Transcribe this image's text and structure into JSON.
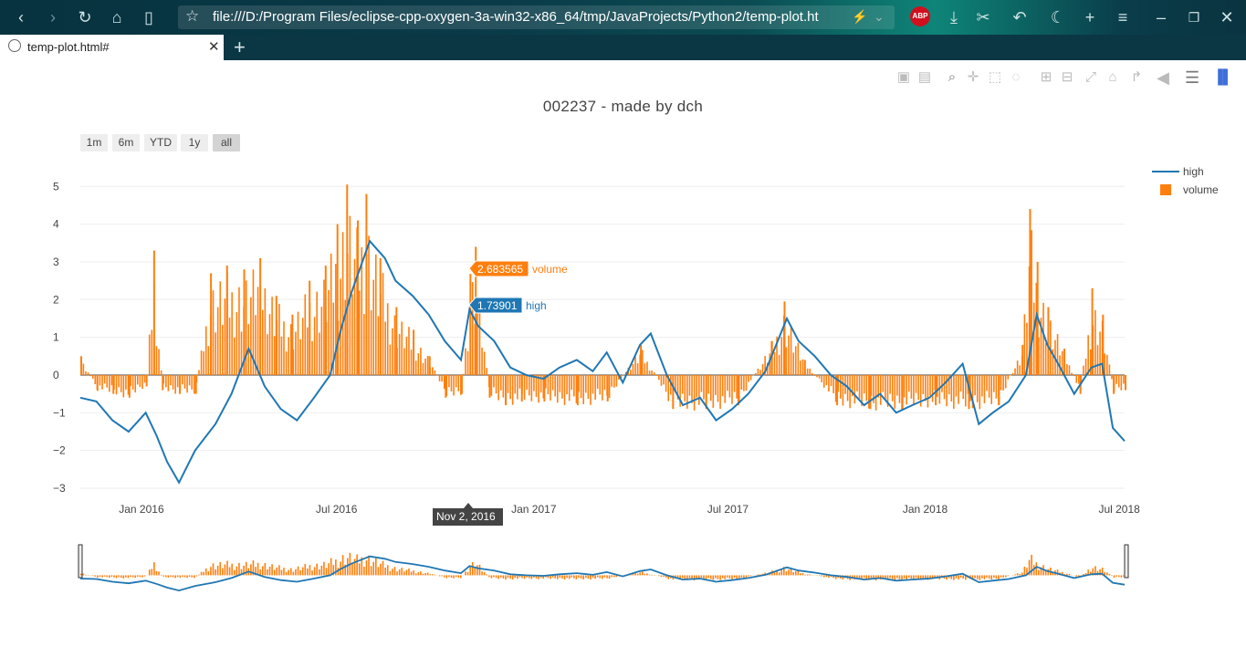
{
  "browser": {
    "url": "file:///D:/Program Files/eclipse-cpp-oxygen-3a-win32-x86_64/tmp/JavaProjects/Python2/temp-plot.ht",
    "tab_title": "temp-plot.html#",
    "adblock_label": "ABP",
    "nav_icons": [
      "back-icon",
      "forward-icon",
      "reload-icon",
      "home-icon",
      "reader-icon"
    ],
    "toolbar_icons": [
      "download-icon",
      "scissors-icon",
      "undo-icon",
      "moon-icon",
      "plus-icon",
      "menu-icon",
      "minimize-icon",
      "restore-icon",
      "close-icon"
    ]
  },
  "modebar": [
    "camera-icon",
    "save-icon",
    "zoom-icon",
    "pan-icon",
    "box-select-icon",
    "lasso-icon",
    "zoom-in-icon",
    "zoom-out-icon",
    "autoscale-icon",
    "reset-axes-icon",
    "spike-lines-icon",
    "hover-closest-icon",
    "hover-compare-icon",
    "plotly-logo-icon"
  ],
  "plot": {
    "title": "002237 - made by dch",
    "range_buttons": [
      {
        "label": "1m",
        "active": false
      },
      {
        "label": "6m",
        "active": false
      },
      {
        "label": "YTD",
        "active": false
      },
      {
        "label": "1y",
        "active": false
      },
      {
        "label": "all",
        "active": true
      }
    ],
    "legend": [
      {
        "name": "high",
        "kind": "line",
        "color": "#1f77b4"
      },
      {
        "name": "volume",
        "kind": "bar",
        "color": "#ff7f0e"
      }
    ],
    "hover": {
      "volume_value": "2.683565",
      "volume_label": "volume",
      "high_value": "1.73901",
      "high_label": "high",
      "date_label": "Nov 2, 2016"
    }
  },
  "chart_data": {
    "type": "line",
    "title": "002237 - made by dch",
    "x_tick_labels": [
      "Jan 2016",
      "Jul 2016",
      "Jan 2017",
      "Jul 2017",
      "Jan 2018",
      "Jul 2018"
    ],
    "y_tick_labels": [
      "5",
      "4",
      "3",
      "2",
      "1",
      "0",
      "−1",
      "−2",
      "−3"
    ],
    "ylim": [
      -3.0,
      5.2
    ],
    "xlim": [
      "2015-11-05",
      "2018-07-06"
    ],
    "legend_position": "top-right",
    "grid": true,
    "series": [
      {
        "name": "high",
        "type": "line",
        "color": "#1f77b4",
        "points": [
          [
            "2015-11-05",
            -0.6
          ],
          [
            "2015-11-20",
            -0.7
          ],
          [
            "2015-12-05",
            -1.2
          ],
          [
            "2015-12-20",
            -1.5
          ],
          [
            "2016-01-05",
            -1.0
          ],
          [
            "2016-01-15",
            -1.6
          ],
          [
            "2016-01-25",
            -2.3
          ],
          [
            "2016-02-05",
            -2.85
          ],
          [
            "2016-02-20",
            -2.0
          ],
          [
            "2016-03-10",
            -1.3
          ],
          [
            "2016-03-25",
            -0.5
          ],
          [
            "2016-04-10",
            0.7
          ],
          [
            "2016-04-25",
            -0.3
          ],
          [
            "2016-05-10",
            -0.9
          ],
          [
            "2016-05-25",
            -1.2
          ],
          [
            "2016-06-10",
            -0.6
          ],
          [
            "2016-06-25",
            0.0
          ],
          [
            "2016-07-05",
            1.2
          ],
          [
            "2016-07-15",
            2.2
          ],
          [
            "2016-07-25",
            3.0
          ],
          [
            "2016-08-01",
            3.55
          ],
          [
            "2016-08-15",
            3.1
          ],
          [
            "2016-08-25",
            2.5
          ],
          [
            "2016-09-10",
            2.1
          ],
          [
            "2016-09-25",
            1.6
          ],
          [
            "2016-10-10",
            0.9
          ],
          [
            "2016-10-25",
            0.4
          ],
          [
            "2016-11-02",
            1.74
          ],
          [
            "2016-11-10",
            1.3
          ],
          [
            "2016-11-25",
            0.9
          ],
          [
            "2016-12-10",
            0.2
          ],
          [
            "2016-12-25",
            0.0
          ],
          [
            "2017-01-10",
            -0.1
          ],
          [
            "2017-01-25",
            0.2
          ],
          [
            "2017-02-10",
            0.4
          ],
          [
            "2017-02-25",
            0.1
          ],
          [
            "2017-03-10",
            0.6
          ],
          [
            "2017-03-25",
            -0.2
          ],
          [
            "2017-04-10",
            0.8
          ],
          [
            "2017-04-20",
            1.1
          ],
          [
            "2017-05-05",
            0.0
          ],
          [
            "2017-05-20",
            -0.8
          ],
          [
            "2017-06-05",
            -0.6
          ],
          [
            "2017-06-20",
            -1.2
          ],
          [
            "2017-07-05",
            -0.9
          ],
          [
            "2017-07-20",
            -0.5
          ],
          [
            "2017-08-05",
            0.1
          ],
          [
            "2017-08-15",
            0.8
          ],
          [
            "2017-08-25",
            1.5
          ],
          [
            "2017-09-05",
            0.9
          ],
          [
            "2017-09-20",
            0.5
          ],
          [
            "2017-10-05",
            0.0
          ],
          [
            "2017-10-20",
            -0.3
          ],
          [
            "2017-11-05",
            -0.8
          ],
          [
            "2017-11-20",
            -0.5
          ],
          [
            "2017-12-05",
            -1.0
          ],
          [
            "2017-12-20",
            -0.8
          ],
          [
            "2018-01-05",
            -0.6
          ],
          [
            "2018-01-20",
            -0.2
          ],
          [
            "2018-02-05",
            0.3
          ],
          [
            "2018-02-20",
            -1.3
          ],
          [
            "2018-03-05",
            -1.0
          ],
          [
            "2018-03-20",
            -0.7
          ],
          [
            "2018-04-05",
            0.0
          ],
          [
            "2018-04-15",
            1.6
          ],
          [
            "2018-04-25",
            0.8
          ],
          [
            "2018-05-05",
            0.3
          ],
          [
            "2018-05-20",
            -0.5
          ],
          [
            "2018-06-05",
            0.2
          ],
          [
            "2018-06-15",
            0.3
          ],
          [
            "2018-06-25",
            -1.4
          ],
          [
            "2018-07-06",
            -1.75
          ]
        ]
      },
      {
        "name": "volume",
        "type": "bar",
        "color": "#ff7f0e",
        "points": [
          [
            "2015-11-05",
            0.5
          ],
          [
            "2015-11-20",
            -0.4
          ],
          [
            "2015-12-05",
            -0.5
          ],
          [
            "2015-12-20",
            -0.6
          ],
          [
            "2016-01-05",
            -0.3
          ],
          [
            "2016-01-12",
            3.3
          ],
          [
            "2016-01-20",
            -0.4
          ],
          [
            "2016-02-05",
            -0.5
          ],
          [
            "2016-02-20",
            -0.5
          ],
          [
            "2016-03-05",
            2.7
          ],
          [
            "2016-03-20",
            2.9
          ],
          [
            "2016-04-05",
            2.8
          ],
          [
            "2016-04-20",
            3.1
          ],
          [
            "2016-05-05",
            2.1
          ],
          [
            "2016-05-20",
            1.6
          ],
          [
            "2016-06-05",
            2.5
          ],
          [
            "2016-06-20",
            2.9
          ],
          [
            "2016-07-01",
            4.0
          ],
          [
            "2016-07-10",
            5.05
          ],
          [
            "2016-07-20",
            4.1
          ],
          [
            "2016-07-28",
            4.8
          ],
          [
            "2016-08-10",
            3.1
          ],
          [
            "2016-08-25",
            1.8
          ],
          [
            "2016-09-10",
            1.2
          ],
          [
            "2016-09-25",
            0.5
          ],
          [
            "2016-10-10",
            -0.6
          ],
          [
            "2016-10-25",
            -0.5
          ],
          [
            "2016-11-02",
            2.68
          ],
          [
            "2016-11-07",
            3.4
          ],
          [
            "2016-11-20",
            -0.6
          ],
          [
            "2016-12-05",
            -0.8
          ],
          [
            "2016-12-20",
            -0.7
          ],
          [
            "2017-01-10",
            -0.7
          ],
          [
            "2017-02-10",
            -0.8
          ],
          [
            "2017-03-10",
            -0.7
          ],
          [
            "2017-04-10",
            0.8
          ],
          [
            "2017-05-10",
            -0.9
          ],
          [
            "2017-06-10",
            -0.9
          ],
          [
            "2017-07-10",
            -0.8
          ],
          [
            "2017-08-10",
            0.9
          ],
          [
            "2017-08-22",
            1.95
          ],
          [
            "2017-09-10",
            0.4
          ],
          [
            "2017-10-10",
            -0.8
          ],
          [
            "2017-11-10",
            -0.9
          ],
          [
            "2017-12-10",
            -0.9
          ],
          [
            "2018-01-10",
            -0.8
          ],
          [
            "2018-02-10",
            -0.9
          ],
          [
            "2018-03-10",
            -0.8
          ],
          [
            "2018-04-01",
            0.8
          ],
          [
            "2018-04-08",
            4.4
          ],
          [
            "2018-04-15",
            3.0
          ],
          [
            "2018-04-25",
            1.8
          ],
          [
            "2018-05-10",
            0.7
          ],
          [
            "2018-05-25",
            -0.5
          ],
          [
            "2018-06-05",
            2.3
          ],
          [
            "2018-06-15",
            1.6
          ],
          [
            "2018-06-25",
            -0.5
          ],
          [
            "2018-07-06",
            -0.4
          ]
        ]
      }
    ]
  }
}
